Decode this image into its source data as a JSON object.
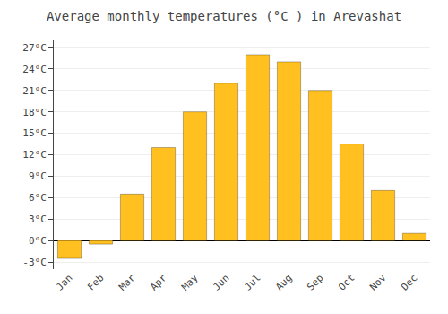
{
  "chart_data": {
    "type": "bar",
    "title": "Average monthly temperatures (°C ) in Arevashat",
    "categories": [
      "Jan",
      "Feb",
      "Mar",
      "Apr",
      "May",
      "Jun",
      "Jul",
      "Aug",
      "Sep",
      "Oct",
      "Nov",
      "Dec"
    ],
    "values": [
      -2.5,
      -0.5,
      6.5,
      13.0,
      18.0,
      22.0,
      26.0,
      25.0,
      21.0,
      13.5,
      7.0,
      1.0
    ],
    "color": "#FFC020",
    "ylim": [
      -4,
      28
    ],
    "yticks": [
      {
        "value": -3,
        "label": "-3°C"
      },
      {
        "value": 0,
        "label": "0°C"
      },
      {
        "value": 3,
        "label": "3°C"
      },
      {
        "value": 6,
        "label": "6°C"
      },
      {
        "value": 9,
        "label": "9°C"
      },
      {
        "value": 12,
        "label": "12°C"
      },
      {
        "value": 15,
        "label": "15°C"
      },
      {
        "value": 18,
        "label": "18°C"
      },
      {
        "value": 21,
        "label": "21°C"
      },
      {
        "value": 24,
        "label": "24°C"
      },
      {
        "value": 27,
        "label": "27°C"
      }
    ],
    "grid": true
  }
}
